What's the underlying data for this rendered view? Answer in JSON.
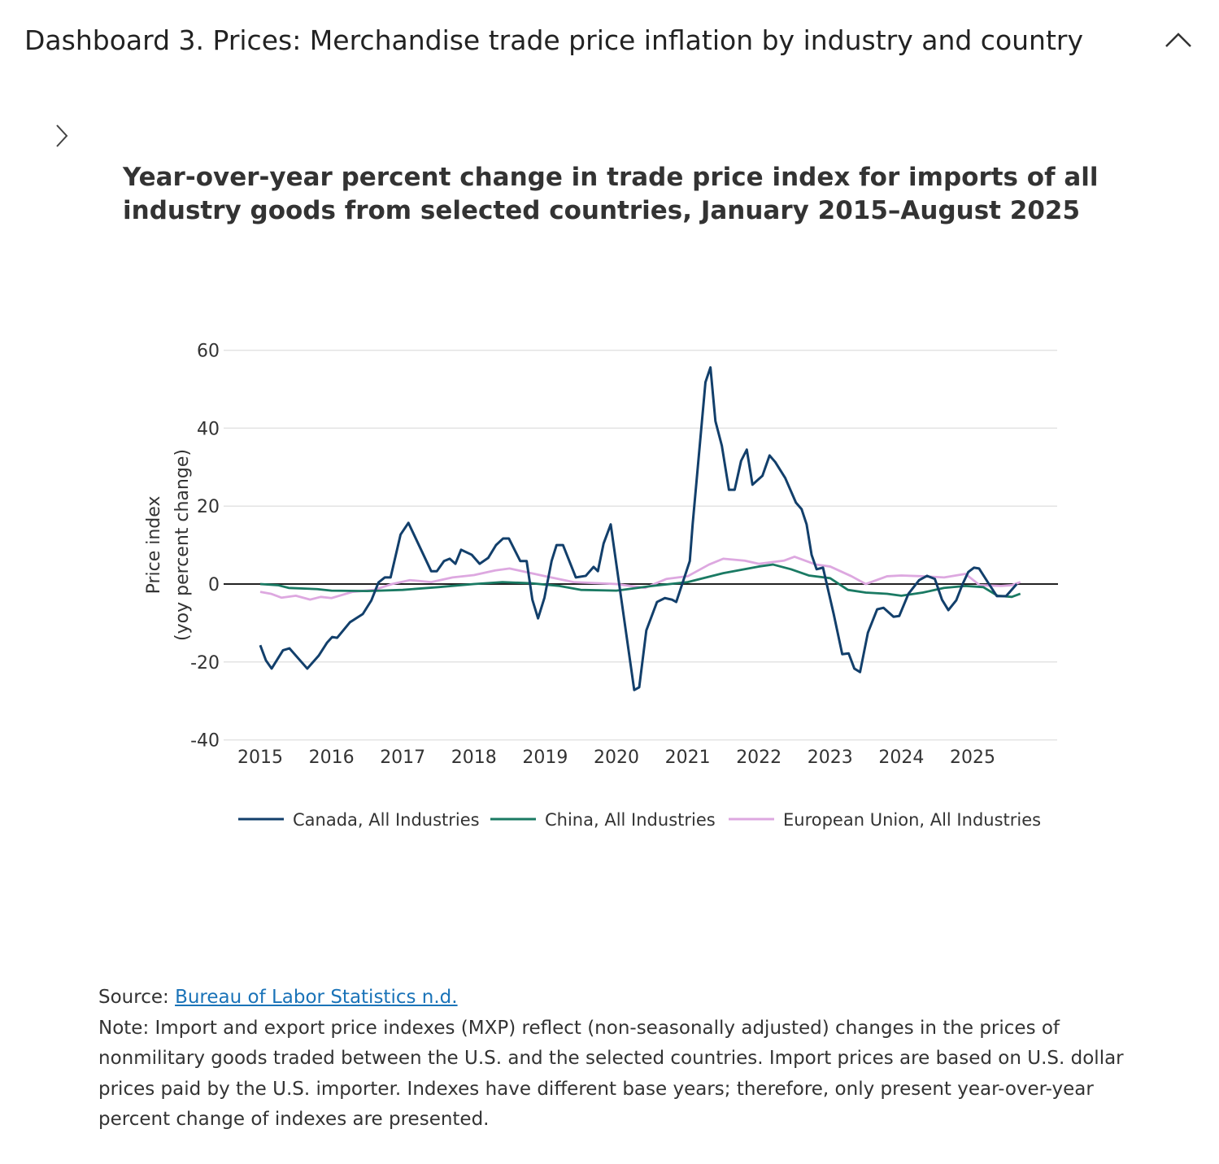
{
  "header": {
    "title": "Dashboard 3. Prices: Merchandise trade price inflation by industry and country",
    "collapse_icon": "chevron-up-icon",
    "expand_icon": "chevron-right-icon"
  },
  "chart_data": {
    "type": "line",
    "title": "Year-over-year percent change in trade price index for imports of all industry goods from selected countries, January 2015–August 2025",
    "ylabel_line1": "Price index",
    "ylabel_line2": "(yoy percent change)",
    "xlabel": "",
    "ylim": [
      -40,
      60
    ],
    "yticks": [
      60,
      40,
      20,
      0,
      -20,
      -40
    ],
    "xticks": [
      2015,
      2016,
      2017,
      2018,
      2019,
      2020,
      2021,
      2022,
      2023,
      2024,
      2025
    ],
    "grid": true,
    "legend": "bottom",
    "series": [
      {
        "name": "Canada, All Industries",
        "color": "#123f6b",
        "points": [
          [
            2015.0,
            -15.7
          ],
          [
            2015.08,
            -19.6
          ],
          [
            2015.16,
            -21.7
          ],
          [
            2015.32,
            -17
          ],
          [
            2015.41,
            -16.5
          ],
          [
            2015.66,
            -21.7
          ],
          [
            2015.82,
            -18.4
          ],
          [
            2015.94,
            -15
          ],
          [
            2016.01,
            -13.6
          ],
          [
            2016.08,
            -13.8
          ],
          [
            2016.26,
            -9.8
          ],
          [
            2016.44,
            -7.7
          ],
          [
            2016.56,
            -4.2
          ],
          [
            2016.66,
            0.4
          ],
          [
            2016.75,
            1.7
          ],
          [
            2016.83,
            1.7
          ],
          [
            2016.97,
            12.7
          ],
          [
            2017.08,
            15.7
          ],
          [
            2017.4,
            3.3
          ],
          [
            2017.48,
            3.3
          ],
          [
            2017.58,
            5.9
          ],
          [
            2017.66,
            6.5
          ],
          [
            2017.74,
            5.2
          ],
          [
            2017.82,
            8.8
          ],
          [
            2017.97,
            7.5
          ],
          [
            2018.08,
            5.2
          ],
          [
            2018.2,
            6.7
          ],
          [
            2018.31,
            10
          ],
          [
            2018.41,
            11.7
          ],
          [
            2018.49,
            11.7
          ],
          [
            2018.65,
            5.9
          ],
          [
            2018.74,
            5.9
          ],
          [
            2018.82,
            -4
          ],
          [
            2018.9,
            -8.8
          ],
          [
            2018.99,
            -3.5
          ],
          [
            2019.09,
            5.9
          ],
          [
            2019.16,
            10
          ],
          [
            2019.25,
            10
          ],
          [
            2019.43,
            1.7
          ],
          [
            2019.57,
            2.1
          ],
          [
            2019.68,
            4.4
          ],
          [
            2019.74,
            3.3
          ],
          [
            2019.82,
            10.4
          ],
          [
            2019.92,
            15.3
          ],
          [
            2020.25,
            -27.2
          ],
          [
            2020.32,
            -26.5
          ],
          [
            2020.42,
            -11.9
          ],
          [
            2020.57,
            -4.6
          ],
          [
            2020.68,
            -3.6
          ],
          [
            2020.78,
            -4
          ],
          [
            2020.84,
            -4.6
          ],
          [
            2021.03,
            5.9
          ],
          [
            2021.07,
            15.3
          ],
          [
            2021.25,
            51.8
          ],
          [
            2021.32,
            55.6
          ],
          [
            2021.39,
            41.8
          ],
          [
            2021.48,
            35.5
          ],
          [
            2021.58,
            24.2
          ],
          [
            2021.66,
            24.2
          ],
          [
            2021.75,
            31.6
          ],
          [
            2021.83,
            34.5
          ],
          [
            2021.91,
            25.5
          ],
          [
            2022.05,
            27.8
          ],
          [
            2022.15,
            33
          ],
          [
            2022.23,
            31.3
          ],
          [
            2022.37,
            27.2
          ],
          [
            2022.52,
            20.9
          ],
          [
            2022.6,
            19.2
          ],
          [
            2022.67,
            15.3
          ],
          [
            2022.74,
            7.5
          ],
          [
            2022.81,
            3.8
          ],
          [
            2022.9,
            4.2
          ],
          [
            2023.05,
            -7.7
          ],
          [
            2023.17,
            -18
          ],
          [
            2023.26,
            -17.8
          ],
          [
            2023.34,
            -21.7
          ],
          [
            2023.42,
            -22.6
          ],
          [
            2023.53,
            -12.5
          ],
          [
            2023.66,
            -6.5
          ],
          [
            2023.75,
            -6.1
          ],
          [
            2023.89,
            -8.4
          ],
          [
            2023.97,
            -8.2
          ],
          [
            2024.1,
            -2.5
          ],
          [
            2024.25,
            1
          ],
          [
            2024.36,
            2.1
          ],
          [
            2024.47,
            1.3
          ],
          [
            2024.57,
            -4
          ],
          [
            2024.66,
            -6.7
          ],
          [
            2024.77,
            -4.2
          ],
          [
            2024.86,
            0
          ],
          [
            2024.94,
            3.1
          ],
          [
            2025.02,
            4.2
          ],
          [
            2025.09,
            4
          ],
          [
            2025.23,
            0
          ],
          [
            2025.34,
            -3.1
          ],
          [
            2025.47,
            -3.1
          ],
          [
            2025.62,
            0
          ]
        ]
      },
      {
        "name": "China, All Industries",
        "color": "#1a7a63",
        "points": [
          [
            2015.0,
            0
          ],
          [
            2015.25,
            -0.3
          ],
          [
            2015.4,
            -1
          ],
          [
            2015.8,
            -1.3
          ],
          [
            2016.0,
            -1.7
          ],
          [
            2016.5,
            -1.8
          ],
          [
            2017.0,
            -1.5
          ],
          [
            2017.5,
            -0.8
          ],
          [
            2018.0,
            0
          ],
          [
            2018.4,
            0.5
          ],
          [
            2018.8,
            0.2
          ],
          [
            2019.2,
            -0.5
          ],
          [
            2019.5,
            -1.5
          ],
          [
            2020.0,
            -1.7
          ],
          [
            2020.5,
            -0.5
          ],
          [
            2021.0,
            0.5
          ],
          [
            2021.5,
            2.8
          ],
          [
            2022.0,
            4.5
          ],
          [
            2022.2,
            5
          ],
          [
            2022.45,
            3.8
          ],
          [
            2022.7,
            2.2
          ],
          [
            2023.0,
            1.5
          ],
          [
            2023.25,
            -1.5
          ],
          [
            2023.5,
            -2.2
          ],
          [
            2023.8,
            -2.5
          ],
          [
            2024.0,
            -3
          ],
          [
            2024.3,
            -2.2
          ],
          [
            2024.6,
            -1
          ],
          [
            2024.9,
            -0.5
          ],
          [
            2025.15,
            -0.8
          ],
          [
            2025.35,
            -3
          ],
          [
            2025.55,
            -3.3
          ],
          [
            2025.67,
            -2.5
          ]
        ]
      },
      {
        "name": "European Union, All Industries",
        "color": "#dda8e0",
        "points": [
          [
            2015.0,
            -2
          ],
          [
            2015.15,
            -2.5
          ],
          [
            2015.3,
            -3.5
          ],
          [
            2015.5,
            -3
          ],
          [
            2015.7,
            -4
          ],
          [
            2015.85,
            -3.3
          ],
          [
            2016.0,
            -3.6
          ],
          [
            2016.3,
            -2
          ],
          [
            2016.6,
            -1.5
          ],
          [
            2016.85,
            0
          ],
          [
            2017.1,
            1
          ],
          [
            2017.4,
            0.5
          ],
          [
            2017.7,
            1.7
          ],
          [
            2018.0,
            2.3
          ],
          [
            2018.3,
            3.5
          ],
          [
            2018.5,
            4
          ],
          [
            2018.75,
            3
          ],
          [
            2019.0,
            2
          ],
          [
            2019.4,
            0.5
          ],
          [
            2020.0,
            0
          ],
          [
            2020.4,
            -1
          ],
          [
            2020.7,
            1.3
          ],
          [
            2021.0,
            2
          ],
          [
            2021.3,
            5
          ],
          [
            2021.5,
            6.5
          ],
          [
            2021.8,
            6
          ],
          [
            2022.0,
            5.2
          ],
          [
            2022.35,
            6
          ],
          [
            2022.5,
            7
          ],
          [
            2022.8,
            5
          ],
          [
            2023.0,
            4.5
          ],
          [
            2023.3,
            2
          ],
          [
            2023.5,
            0
          ],
          [
            2023.8,
            2
          ],
          [
            2024.0,
            2.2
          ],
          [
            2024.3,
            2
          ],
          [
            2024.6,
            1.7
          ],
          [
            2024.9,
            2.6
          ],
          [
            2025.1,
            -0.3
          ],
          [
            2025.4,
            -0.5
          ],
          [
            2025.55,
            -0.3
          ],
          [
            2025.67,
            0.5
          ]
        ]
      }
    ]
  },
  "footer": {
    "source_label": "Source: ",
    "source_link": "Bureau of Labor Statistics n.d.",
    "note": "Note: Import and export price indexes (MXP) reflect (non-seasonally adjusted) changes in the prices of nonmilitary goods traded between the U.S. and the selected countries. Import prices are based on U.S. dollar prices paid by the U.S. importer. Indexes have different base years; therefore, only present year-over-year percent change of indexes are presented."
  }
}
